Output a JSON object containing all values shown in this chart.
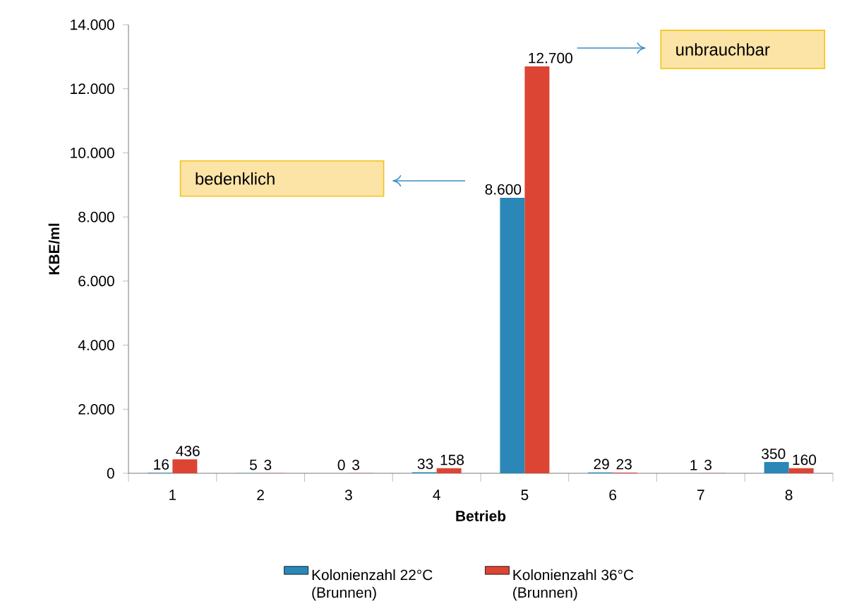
{
  "chart_data": {
    "type": "bar",
    "xlabel": "Betrieb",
    "ylabel": "KBE/ml",
    "categories": [
      "1",
      "2",
      "3",
      "4",
      "5",
      "6",
      "7",
      "8"
    ],
    "series": [
      {
        "name": "Kolonienzahl 22°C (Brunnen)",
        "color": "#2a87b8",
        "values": [
          16,
          5,
          0,
          33,
          8600,
          29,
          1,
          350
        ],
        "value_labels": [
          "16",
          "5",
          "0",
          "33",
          "8.600",
          "29",
          "1",
          "350"
        ]
      },
      {
        "name": "Kolonienzahl 36°C (Brunnen)",
        "color": "#dc4433",
        "values": [
          436,
          3,
          3,
          158,
          12700,
          23,
          3,
          160
        ],
        "value_labels": [
          "436",
          "3",
          "3",
          "158",
          "12.700",
          "23",
          "3",
          "160"
        ]
      }
    ],
    "ylim": [
      0,
      14000
    ],
    "yticks": [
      0,
      {
        "value": 2000,
        "label": "2.000"
      },
      {
        "value": 4000,
        "label": "4.000"
      },
      {
        "value": 6000,
        "label": "6.000"
      },
      {
        "value": 8000,
        "label": "8.000"
      },
      {
        "value": 10000,
        "label": "10.000"
      },
      {
        "value": 12000,
        "label": "12.000"
      },
      {
        "value": 14000,
        "label": "14.000"
      }
    ],
    "grid": false,
    "legend": "bottom",
    "annotations": [
      "bedenklich",
      "unbrauchbar"
    ]
  }
}
